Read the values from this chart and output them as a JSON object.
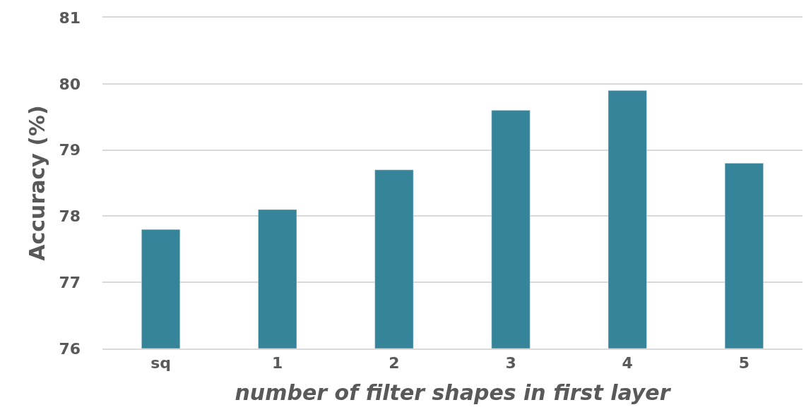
{
  "chart_data": {
    "type": "bar",
    "xlabel": "number of filter shapes in first layer",
    "ylabel": "Accuracy (%)",
    "categories": [
      "sq",
      "1",
      "2",
      "3",
      "4",
      "5"
    ],
    "values": [
      77.8,
      78.1,
      78.7,
      79.6,
      79.9,
      78.8
    ],
    "color": "#36849a",
    "ylim": [
      76,
      81
    ],
    "yticks": [
      76,
      77,
      78,
      79,
      80,
      81
    ],
    "grid": "y"
  }
}
